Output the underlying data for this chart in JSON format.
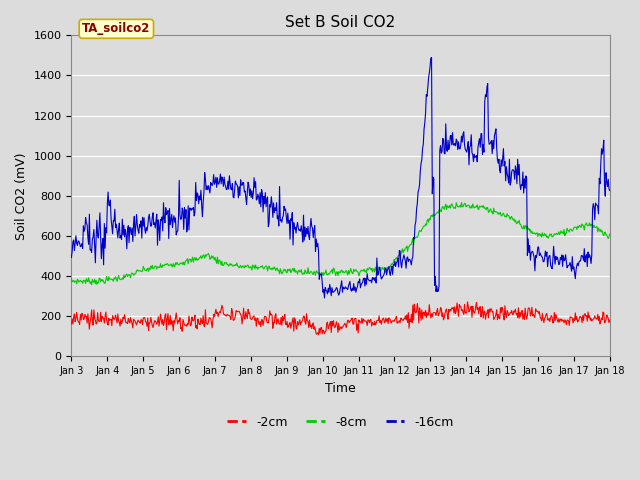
{
  "title": "Set B Soil CO2",
  "ylabel": "Soil CO2 (mV)",
  "xlabel": "Time",
  "legend_label": "TA_soilco2",
  "series_labels": [
    "-2cm",
    "-8cm",
    "-16cm"
  ],
  "series_colors": [
    "#ff0000",
    "#00cc00",
    "#0000cc"
  ],
  "ylim": [
    0,
    1600
  ],
  "bg_color": "#dcdcdc",
  "fig_color": "#dcdcdc",
  "xtick_labels": [
    "Jan 3",
    "Jan 4",
    "Jan 5",
    "Jan 6",
    "Jan 7",
    "Jan 8",
    "Jan 9",
    "Jan 10",
    "Jan 11",
    "Jan 12",
    "Jan 13",
    "Jan 14",
    "Jan 15",
    "Jan 16",
    "Jan 17",
    "Jan 18"
  ],
  "legend_box_facecolor": "#ffffcc",
  "legend_box_edgecolor": "#ccaa00",
  "yticks": [
    0,
    200,
    400,
    600,
    800,
    1000,
    1200,
    1400,
    1600
  ],
  "grid_color": "#ffffff",
  "title_fontsize": 11,
  "axis_fontsize": 9,
  "tick_fontsize": 8
}
